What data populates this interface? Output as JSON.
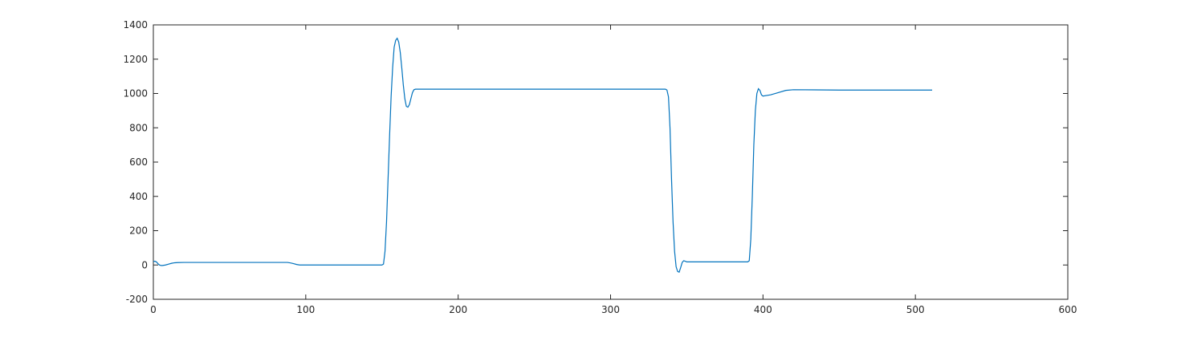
{
  "chart_data": {
    "type": "line",
    "title": "",
    "xlabel": "",
    "ylabel": "",
    "xlim": [
      0,
      600
    ],
    "ylim": [
      -200,
      1400
    ],
    "xticks": [
      0,
      100,
      200,
      300,
      400,
      500,
      600
    ],
    "yticks": [
      -200,
      0,
      200,
      400,
      600,
      800,
      1000,
      1200,
      1400
    ],
    "xtick_labels": [
      "0",
      "100",
      "200",
      "300",
      "400",
      "500",
      "600"
    ],
    "ytick_labels": [
      "-200",
      "0",
      "200",
      "400",
      "600",
      "800",
      "1000",
      "1200",
      "1400"
    ],
    "grid": false,
    "legend": "none",
    "series": [
      {
        "color": "#0072BD",
        "points": [
          [
            0,
            20
          ],
          [
            1,
            22
          ],
          [
            2,
            18
          ],
          [
            3,
            8
          ],
          [
            4,
            0
          ],
          [
            5,
            -3
          ],
          [
            6,
            -3
          ],
          [
            8,
            0
          ],
          [
            10,
            5
          ],
          [
            12,
            10
          ],
          [
            14,
            13
          ],
          [
            16,
            14
          ],
          [
            20,
            15
          ],
          [
            30,
            15
          ],
          [
            50,
            15
          ],
          [
            70,
            15
          ],
          [
            88,
            15
          ],
          [
            90,
            12
          ],
          [
            92,
            8
          ],
          [
            94,
            3
          ],
          [
            96,
            0
          ],
          [
            100,
            0
          ],
          [
            120,
            0
          ],
          [
            140,
            0
          ],
          [
            150,
            0
          ],
          [
            151,
            5
          ],
          [
            152,
            80
          ],
          [
            153,
            250
          ],
          [
            154,
            500
          ],
          [
            155,
            750
          ],
          [
            156,
            980
          ],
          [
            157,
            1150
          ],
          [
            158,
            1270
          ],
          [
            159,
            1310
          ],
          [
            160,
            1322
          ],
          [
            161,
            1300
          ],
          [
            162,
            1240
          ],
          [
            163,
            1150
          ],
          [
            164,
            1050
          ],
          [
            165,
            970
          ],
          [
            166,
            925
          ],
          [
            167,
            920
          ],
          [
            168,
            935
          ],
          [
            169,
            970
          ],
          [
            170,
            1005
          ],
          [
            171,
            1022
          ],
          [
            172,
            1025
          ],
          [
            200,
            1025
          ],
          [
            250,
            1025
          ],
          [
            300,
            1025
          ],
          [
            336,
            1025
          ],
          [
            337,
            1020
          ],
          [
            338,
            980
          ],
          [
            339,
            800
          ],
          [
            340,
            500
          ],
          [
            341,
            250
          ],
          [
            342,
            80
          ],
          [
            343,
            -10
          ],
          [
            344,
            -38
          ],
          [
            345,
            -42
          ],
          [
            346,
            -15
          ],
          [
            347,
            15
          ],
          [
            348,
            25
          ],
          [
            349,
            22
          ],
          [
            350,
            18
          ],
          [
            355,
            18
          ],
          [
            370,
            18
          ],
          [
            390,
            18
          ],
          [
            391,
            25
          ],
          [
            392,
            150
          ],
          [
            393,
            400
          ],
          [
            394,
            700
          ],
          [
            395,
            900
          ],
          [
            396,
            1000
          ],
          [
            397,
            1028
          ],
          [
            398,
            1018
          ],
          [
            399,
            992
          ],
          [
            400,
            985
          ],
          [
            405,
            992
          ],
          [
            410,
            1005
          ],
          [
            415,
            1018
          ],
          [
            420,
            1022
          ],
          [
            450,
            1020
          ],
          [
            480,
            1020
          ],
          [
            511,
            1020
          ]
        ]
      }
    ]
  }
}
